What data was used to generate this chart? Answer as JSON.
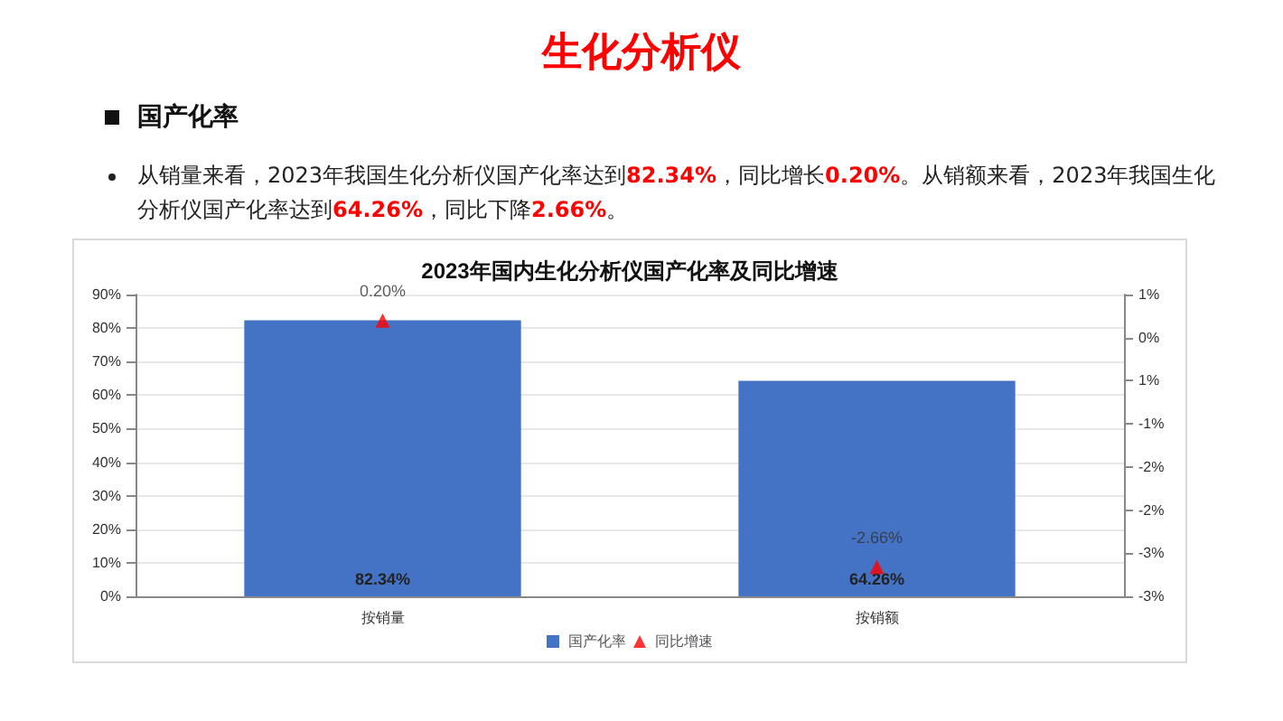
{
  "chart_data": {
    "type": "bar",
    "title": "2023年国内生化分析仪国产化率及同比增速",
    "annotations": [
      "生化分析仪",
      "国产化率",
      "从销量来看，2023年我国生化分析仪国产化率达到82.34%，同比增长0.20%。从销额来看，2023年我国生化分析仪国产化率达到64.26%，同比下降2.66%。"
    ],
    "categories": [
      "按销量",
      "按销额"
    ],
    "series": [
      {
        "name": "国产化率",
        "color": "#4472c4",
        "values": [
          82.34,
          64.26
        ],
        "value_labels": [
          "82.34%",
          "64.26%"
        ]
      },
      {
        "name": "同比增速",
        "type": "scatter",
        "axis": "y2",
        "color": "#ff0000",
        "marker": "triangle",
        "values": [
          0.2,
          -2.66
        ],
        "value_labels": [
          "0.20%",
          "-2.66%"
        ]
      }
    ],
    "ylim": [
      0,
      90
    ],
    "yticks": [
      {
        "value": 0,
        "label": "0%"
      },
      {
        "value": 10,
        "label": "10%"
      },
      {
        "value": 20,
        "label": "20%"
      },
      {
        "value": 30,
        "label": "30%"
      },
      {
        "value": 40,
        "label": "40%"
      },
      {
        "value": 50,
        "label": "50%"
      },
      {
        "value": 60,
        "label": "60%"
      },
      {
        "value": 70,
        "label": "70%"
      },
      {
        "value": 80,
        "label": "80%"
      },
      {
        "value": 90,
        "label": "90%"
      }
    ],
    "y2lim": [
      -3,
      0.5
    ],
    "y2ticks": [
      {
        "value": -3,
        "label": "-3%"
      },
      {
        "value": -2.5,
        "label": "-3%"
      },
      {
        "value": -2,
        "label": "-2%"
      },
      {
        "value": -1.5,
        "label": "-2%"
      },
      {
        "value": -1,
        "label": "-1%"
      },
      {
        "value": -0.5,
        "label": "1%"
      },
      {
        "value": 0,
        "label": "0%"
      },
      {
        "value": 0.5,
        "label": "1%"
      }
    ],
    "grid": "y",
    "legend": "bottom"
  }
}
